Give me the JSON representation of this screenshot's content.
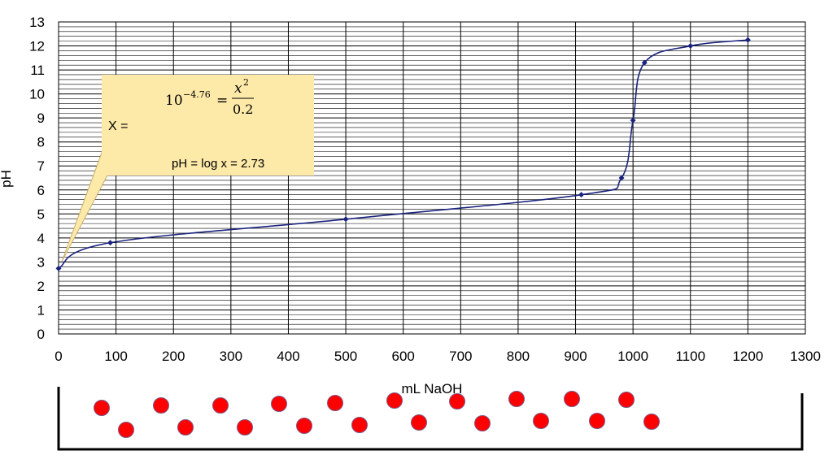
{
  "chart_data": {
    "type": "line",
    "xlabel": "mL NaOH",
    "ylabel": "pH",
    "xlim": [
      0,
      1300
    ],
    "ylim": [
      0,
      13
    ],
    "x_ticks": [
      0,
      100,
      200,
      300,
      400,
      500,
      600,
      700,
      800,
      900,
      1000,
      1100,
      1200,
      1300
    ],
    "y_ticks": [
      0,
      1,
      2,
      3,
      4,
      5,
      6,
      7,
      8,
      9,
      10,
      11,
      12,
      13
    ],
    "grid": true,
    "series": [
      {
        "color": "#1a237e",
        "points": [
          {
            "x": 0,
            "y": 2.73
          },
          {
            "x": 90,
            "y": 3.8
          },
          {
            "x": 500,
            "y": 4.78
          },
          {
            "x": 910,
            "y": 5.8
          },
          {
            "x": 980,
            "y": 6.5
          },
          {
            "x": 1000,
            "y": 8.9
          },
          {
            "x": 1020,
            "y": 11.3
          },
          {
            "x": 1100,
            "y": 12.0
          },
          {
            "x": 1200,
            "y": 12.25
          }
        ]
      }
    ]
  },
  "callout": {
    "x_label": "X =",
    "equation_base": "10",
    "equation_exponent": "−4.76",
    "equation_equals": "=",
    "equation_numerator": "x",
    "equation_numerator_exp": "2",
    "equation_denominator": "0.2",
    "ph_result": "pH = log x = 2.73",
    "fill_color": "#fde9a8"
  },
  "beaker": {
    "particle_color": "#ff0000",
    "particle_stroke": "#7a5a8a",
    "particle_count": 20
  }
}
